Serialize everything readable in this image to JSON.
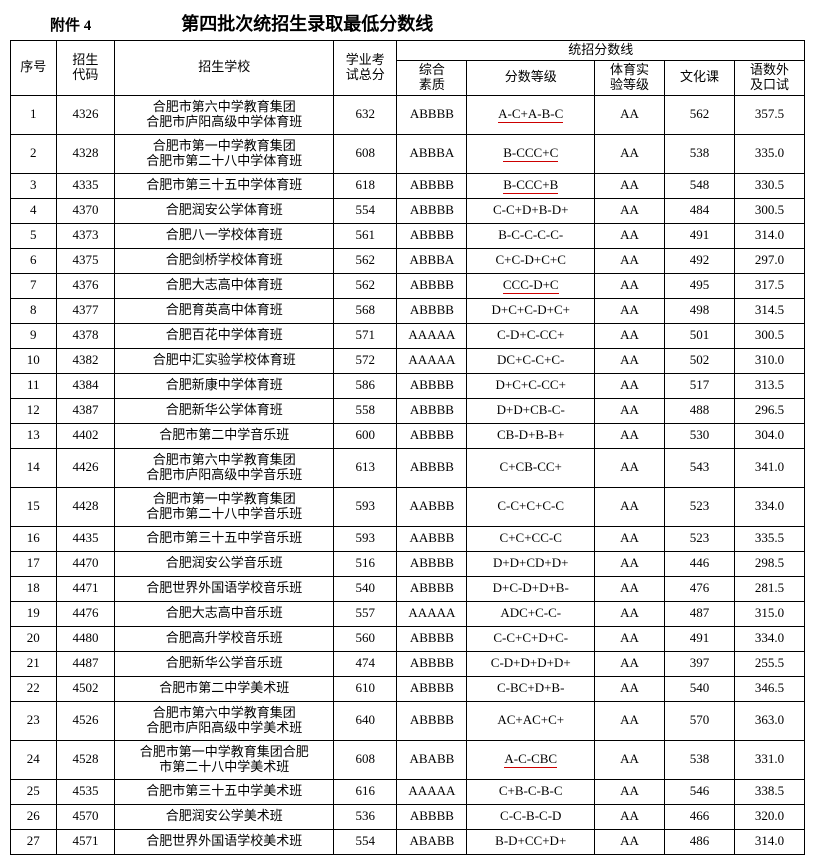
{
  "header": {
    "attachment": "附件 4",
    "title": "第四批次统招生录取最低分数线"
  },
  "columns": {
    "seq": "序号",
    "code_l1": "招生",
    "code_l2": "代码",
    "school": "招生学校",
    "total_l1": "学业考",
    "total_l2": "试总分",
    "group": "统招分数线",
    "zhsz_l1": "综合",
    "zhsz_l2": "素质",
    "fsdj": "分数等级",
    "tysy_l1": "体育实",
    "tysy_l2": "验等级",
    "whk": "文化课",
    "yswks_l1": "语数外",
    "yswks_l2": "及口试"
  },
  "rows": [
    {
      "seq": "1",
      "code": "4326",
      "name": "合肥市第六中学教育集团\n合肥市庐阳高级中学体育班",
      "total": "632",
      "zhsz": "ABBBB",
      "fsdj": "A-C+A-B-C",
      "fsdj_red": true,
      "tysy": "AA",
      "whk": "562",
      "yswks": "357.5",
      "tall": true
    },
    {
      "seq": "2",
      "code": "4328",
      "name": "合肥市第一中学教育集团\n合肥市第二十八中学体育班",
      "total": "608",
      "zhsz": "ABBBA",
      "fsdj": "B-CCC+C",
      "fsdj_red": true,
      "tysy": "AA",
      "whk": "538",
      "yswks": "335.0",
      "tall": true
    },
    {
      "seq": "3",
      "code": "4335",
      "name": "合肥市第三十五中学体育班",
      "total": "618",
      "zhsz": "ABBBB",
      "fsdj": "B-CCC+B",
      "fsdj_red": true,
      "tysy": "AA",
      "whk": "548",
      "yswks": "330.5"
    },
    {
      "seq": "4",
      "code": "4370",
      "name": "合肥润安公学体育班",
      "total": "554",
      "zhsz": "ABBBB",
      "fsdj": "C-C+D+B-D+",
      "tysy": "AA",
      "whk": "484",
      "yswks": "300.5"
    },
    {
      "seq": "5",
      "code": "4373",
      "name": "合肥八一学校体育班",
      "total": "561",
      "zhsz": "ABBBB",
      "fsdj": "B-C-C-C-C-",
      "tysy": "AA",
      "whk": "491",
      "yswks": "314.0"
    },
    {
      "seq": "6",
      "code": "4375",
      "name": "合肥剑桥学校体育班",
      "total": "562",
      "zhsz": "ABBBA",
      "fsdj": "C+C-D+C+C",
      "tysy": "AA",
      "whk": "492",
      "yswks": "297.0"
    },
    {
      "seq": "7",
      "code": "4376",
      "name": "合肥大志高中体育班",
      "total": "562",
      "zhsz": "ABBBB",
      "fsdj": "CCC-D+C",
      "fsdj_red": true,
      "tysy": "AA",
      "whk": "495",
      "yswks": "317.5"
    },
    {
      "seq": "8",
      "code": "4377",
      "name": "合肥育英高中体育班",
      "total": "568",
      "zhsz": "ABBBB",
      "fsdj": "D+C+C-D+C+",
      "tysy": "AA",
      "whk": "498",
      "yswks": "314.5"
    },
    {
      "seq": "9",
      "code": "4378",
      "name": "合肥百花中学体育班",
      "total": "571",
      "zhsz": "AAAAA",
      "fsdj": "C-D+C-CC+",
      "tysy": "AA",
      "whk": "501",
      "yswks": "300.5"
    },
    {
      "seq": "10",
      "code": "4382",
      "name": "合肥中汇实验学校体育班",
      "total": "572",
      "zhsz": "AAAAA",
      "fsdj": "DC+C-C+C-",
      "tysy": "AA",
      "whk": "502",
      "yswks": "310.0"
    },
    {
      "seq": "11",
      "code": "4384",
      "name": "合肥新康中学体育班",
      "total": "586",
      "zhsz": "ABBBB",
      "fsdj": "D+C+C-CC+",
      "tysy": "AA",
      "whk": "517",
      "yswks": "313.5"
    },
    {
      "seq": "12",
      "code": "4387",
      "name": "合肥新华公学体育班",
      "total": "558",
      "zhsz": "ABBBB",
      "fsdj": "D+D+CB-C-",
      "tysy": "AA",
      "whk": "488",
      "yswks": "296.5"
    },
    {
      "seq": "13",
      "code": "4402",
      "name": "合肥市第二中学音乐班",
      "total": "600",
      "zhsz": "ABBBB",
      "fsdj": "CB-D+B-B+",
      "tysy": "AA",
      "whk": "530",
      "yswks": "304.0"
    },
    {
      "seq": "14",
      "code": "4426",
      "name": "合肥市第六中学教育集团\n合肥市庐阳高级中学音乐班",
      "total": "613",
      "zhsz": "ABBBB",
      "fsdj": "C+CB-CC+",
      "tysy": "AA",
      "whk": "543",
      "yswks": "341.0",
      "tall": true
    },
    {
      "seq": "15",
      "code": "4428",
      "name": "合肥市第一中学教育集团\n合肥市第二十八中学音乐班",
      "total": "593",
      "zhsz": "AABBB",
      "fsdj": "C-C+C+C-C",
      "tysy": "AA",
      "whk": "523",
      "yswks": "334.0",
      "tall": true
    },
    {
      "seq": "16",
      "code": "4435",
      "name": "合肥市第三十五中学音乐班",
      "total": "593",
      "zhsz": "AABBB",
      "fsdj": "C+C+CC-C",
      "tysy": "AA",
      "whk": "523",
      "yswks": "335.5"
    },
    {
      "seq": "17",
      "code": "4470",
      "name": "合肥润安公学音乐班",
      "total": "516",
      "zhsz": "ABBBB",
      "fsdj": "D+D+CD+D+",
      "tysy": "AA",
      "whk": "446",
      "yswks": "298.5"
    },
    {
      "seq": "18",
      "code": "4471",
      "name": "合肥世界外国语学校音乐班",
      "total": "540",
      "zhsz": "ABBBB",
      "fsdj": "D+C-D+D+B-",
      "tysy": "AA",
      "whk": "476",
      "yswks": "281.5"
    },
    {
      "seq": "19",
      "code": "4476",
      "name": "合肥大志高中音乐班",
      "total": "557",
      "zhsz": "AAAAA",
      "fsdj": "ADC+C-C-",
      "tysy": "AA",
      "whk": "487",
      "yswks": "315.0"
    },
    {
      "seq": "20",
      "code": "4480",
      "name": "合肥高升学校音乐班",
      "total": "560",
      "zhsz": "ABBBB",
      "fsdj": "C-C+C+D+C-",
      "tysy": "AA",
      "whk": "491",
      "yswks": "334.0"
    },
    {
      "seq": "21",
      "code": "4487",
      "name": "合肥新华公学音乐班",
      "total": "474",
      "zhsz": "ABBBB",
      "fsdj": "C-D+D+D+D+",
      "tysy": "AA",
      "whk": "397",
      "yswks": "255.5"
    },
    {
      "seq": "22",
      "code": "4502",
      "name": "合肥市第二中学美术班",
      "total": "610",
      "zhsz": "ABBBB",
      "fsdj": "C-BC+D+B-",
      "tysy": "AA",
      "whk": "540",
      "yswks": "346.5"
    },
    {
      "seq": "23",
      "code": "4526",
      "name": "合肥市第六中学教育集团\n合肥市庐阳高级中学美术班",
      "total": "640",
      "zhsz": "ABBBB",
      "fsdj": "AC+AC+C+",
      "tysy": "AA",
      "whk": "570",
      "yswks": "363.0",
      "tall": true
    },
    {
      "seq": "24",
      "code": "4528",
      "name": "合肥市第一中学教育集团合肥\n市第二十八中学美术班",
      "total": "608",
      "zhsz": "ABABB",
      "fsdj": "A-C-CBC",
      "fsdj_red": true,
      "tysy": "AA",
      "whk": "538",
      "yswks": "331.0",
      "tall": true
    },
    {
      "seq": "25",
      "code": "4535",
      "name": "合肥市第三十五中学美术班",
      "total": "616",
      "zhsz": "AAAAA",
      "fsdj": "C+B-C-B-C",
      "tysy": "AA",
      "whk": "546",
      "yswks": "338.5"
    },
    {
      "seq": "26",
      "code": "4570",
      "name": "合肥润安公学美术班",
      "total": "536",
      "zhsz": "ABBBB",
      "fsdj": "C-C-B-C-D",
      "tysy": "AA",
      "whk": "466",
      "yswks": "320.0"
    },
    {
      "seq": "27",
      "code": "4571",
      "name": "合肥世界外国语学校美术班",
      "total": "554",
      "zhsz": "ABABB",
      "fsdj": "B-D+CC+D+",
      "tysy": "AA",
      "whk": "486",
      "yswks": "314.0"
    }
  ]
}
